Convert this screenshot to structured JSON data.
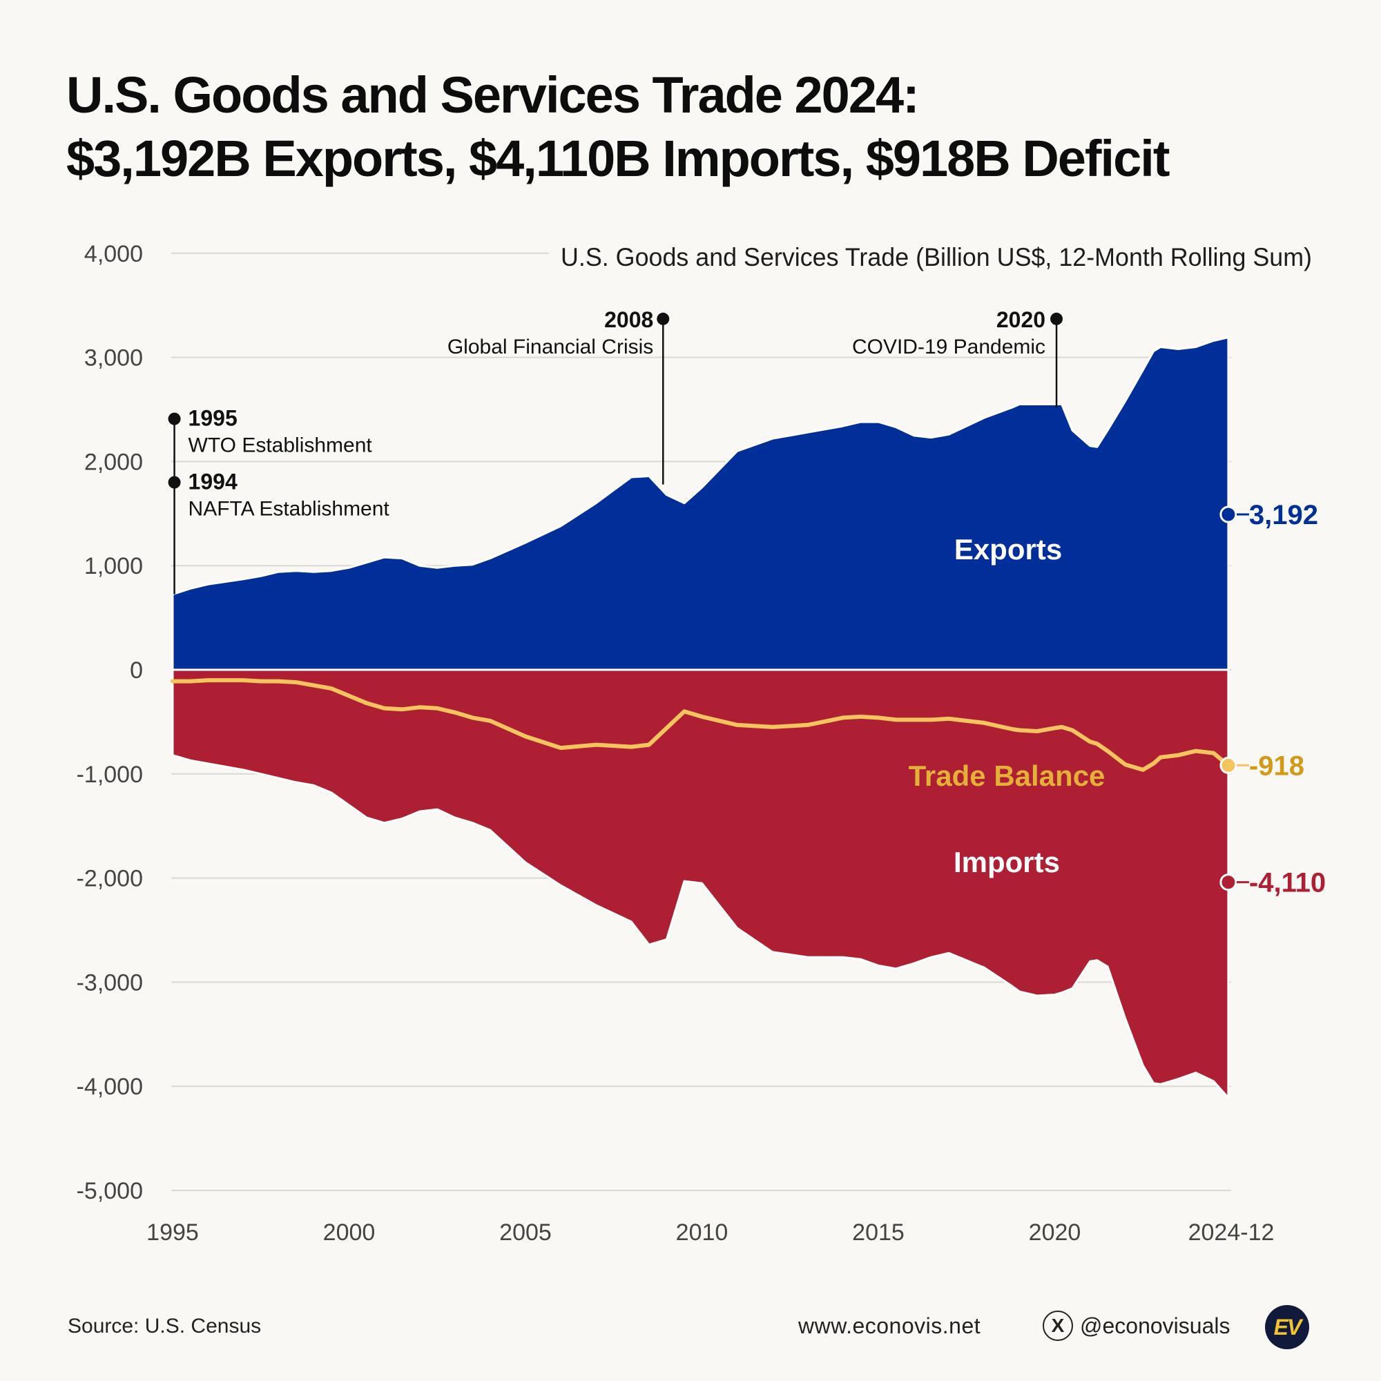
{
  "title": {
    "line1": "U.S. Goods and Services Trade 2024:",
    "line2": "$3,192B Exports, $4,110B Imports, $918B Deficit"
  },
  "chart_data": {
    "type": "area",
    "title": "U.S. Goods and Services Trade (Billion US$, 12-Month Rolling Sum)",
    "xlabel": "",
    "ylabel": "",
    "xlim": [
      1995,
      2025
    ],
    "ylim": [
      -5000,
      4000
    ],
    "y_ticks": [
      4000,
      3000,
      2000,
      1000,
      0,
      -1000,
      -2000,
      -3000,
      -4000,
      -5000
    ],
    "y_tick_labels": [
      "4,000",
      "3,000",
      "2,000",
      "1,000",
      "0",
      "-1,000",
      "-2,000",
      "-3,000",
      "-4,000",
      "-5,000"
    ],
    "x_ticks": [
      1995,
      2000,
      2005,
      2010,
      2015,
      2020,
      2025
    ],
    "x_tick_labels": [
      "1995",
      "2000",
      "2005",
      "2010",
      "2015",
      "2020",
      "2024-12"
    ],
    "grid": true,
    "colors": {
      "exports": "#002f9a",
      "imports": "#af1f33",
      "balance": "#f5c45e",
      "balance_label": "#e3b038",
      "balance_value": "#d29a16"
    },
    "series": [
      {
        "name": "Exports",
        "x": [
          1995,
          1995.5,
          1996,
          1997,
          1997.5,
          1998,
          1998.5,
          1999,
          1999.5,
          2000,
          2000.5,
          2001,
          2001.5,
          2002,
          2002.5,
          2003,
          2003.5,
          2004,
          2005,
          2006,
          2007,
          2008,
          2008.5,
          2009,
          2009.5,
          2010,
          2011,
          2012,
          2013,
          2014,
          2014.5,
          2015,
          2015.5,
          2016,
          2016.5,
          2017,
          2018,
          2018.8,
          2019,
          2019.5,
          2020,
          2020.2,
          2020.5,
          2021,
          2021.2,
          2021.5,
          2022,
          2022.5,
          2022.8,
          2023,
          2023.5,
          2024,
          2024.5,
          2024.92
        ],
        "values": [
          725,
          780,
          820,
          870,
          900,
          940,
          950,
          940,
          950,
          980,
          1030,
          1080,
          1070,
          1000,
          980,
          1000,
          1010,
          1070,
          1220,
          1380,
          1600,
          1850,
          1860,
          1680,
          1600,
          1750,
          2100,
          2220,
          2280,
          2340,
          2380,
          2380,
          2330,
          2250,
          2230,
          2260,
          2420,
          2520,
          2550,
          2550,
          2550,
          2550,
          2300,
          2150,
          2140,
          2300,
          2580,
          2880,
          3060,
          3100,
          3080,
          3100,
          3160,
          3192
        ]
      },
      {
        "name": "Imports",
        "x": [
          1995,
          1995.5,
          1996,
          1997,
          1997.5,
          1998,
          1998.5,
          1999,
          1999.5,
          2000,
          2000.5,
          2001,
          2001.5,
          2002,
          2002.5,
          2003,
          2003.5,
          2004,
          2005,
          2006,
          2007,
          2008,
          2008.5,
          2009,
          2009.5,
          2010,
          2011,
          2012,
          2013,
          2014,
          2014.5,
          2015,
          2015.5,
          2016,
          2016.5,
          2017,
          2018,
          2018.8,
          2019,
          2019.5,
          2020,
          2020.2,
          2020.5,
          2021,
          2021.2,
          2021.5,
          2022,
          2022.5,
          2022.8,
          2023,
          2023.5,
          2024,
          2024.5,
          2024.92
        ],
        "values": [
          -820,
          -870,
          -900,
          -960,
          -1000,
          -1040,
          -1080,
          -1110,
          -1180,
          -1300,
          -1420,
          -1470,
          -1430,
          -1360,
          -1340,
          -1420,
          -1470,
          -1540,
          -1850,
          -2070,
          -2260,
          -2420,
          -2640,
          -2590,
          -2030,
          -2050,
          -2480,
          -2710,
          -2760,
          -2760,
          -2780,
          -2840,
          -2870,
          -2820,
          -2760,
          -2720,
          -2860,
          -3040,
          -3090,
          -3130,
          -3120,
          -3100,
          -3060,
          -2800,
          -2790,
          -2850,
          -3350,
          -3800,
          -3970,
          -3980,
          -3930,
          -3870,
          -3950,
          -4110
        ]
      },
      {
        "name": "Trade Balance",
        "x": [
          1995,
          1995.5,
          1996,
          1997,
          1997.5,
          1998,
          1998.5,
          1999,
          1999.5,
          2000,
          2000.5,
          2001,
          2001.5,
          2002,
          2002.5,
          2003,
          2003.5,
          2004,
          2005,
          2006,
          2007,
          2008,
          2008.5,
          2009,
          2009.5,
          2010,
          2011,
          2012,
          2013,
          2014,
          2014.5,
          2015,
          2015.5,
          2016,
          2016.5,
          2017,
          2018,
          2018.8,
          2019,
          2019.5,
          2020,
          2020.2,
          2020.5,
          2021,
          2021.2,
          2021.5,
          2022,
          2022.5,
          2022.8,
          2023,
          2023.5,
          2024,
          2024.5,
          2024.92
        ],
        "values": [
          -110,
          -110,
          -100,
          -100,
          -110,
          -110,
          -120,
          -150,
          -180,
          -250,
          -320,
          -370,
          -380,
          -360,
          -370,
          -410,
          -460,
          -490,
          -640,
          -750,
          -720,
          -740,
          -720,
          -560,
          -400,
          -450,
          -530,
          -550,
          -530,
          -460,
          -450,
          -460,
          -480,
          -480,
          -480,
          -470,
          -510,
          -570,
          -580,
          -590,
          -560,
          -550,
          -580,
          -690,
          -710,
          -780,
          -910,
          -960,
          -900,
          -840,
          -820,
          -780,
          -800,
          -918
        ]
      }
    ],
    "series_labels": [
      "Exports",
      "Trade Balance",
      "Imports"
    ],
    "end_value_labels": {
      "exports": "3,192",
      "balance": "-918",
      "imports": "-4,110"
    },
    "annotations": [
      {
        "year": "1995",
        "text": "WTO Establishment",
        "x": 1995.05,
        "y": 2410
      },
      {
        "year": "1994",
        "text": "NAFTA Establishment",
        "x": 1995.05,
        "y": 1800
      },
      {
        "year": "2008",
        "text": "Global Financial Crisis",
        "x": 2008.9,
        "y": 3370
      },
      {
        "year": "2020",
        "text": "COVID-19 Pandemic",
        "x": 2020.05,
        "y": 3370
      }
    ]
  },
  "footer": {
    "source": "Source: U.S. Census",
    "website": "www.econovis.net",
    "handle": "@econovisuals",
    "x_icon_glyph": "X",
    "logo_text": "EV"
  }
}
